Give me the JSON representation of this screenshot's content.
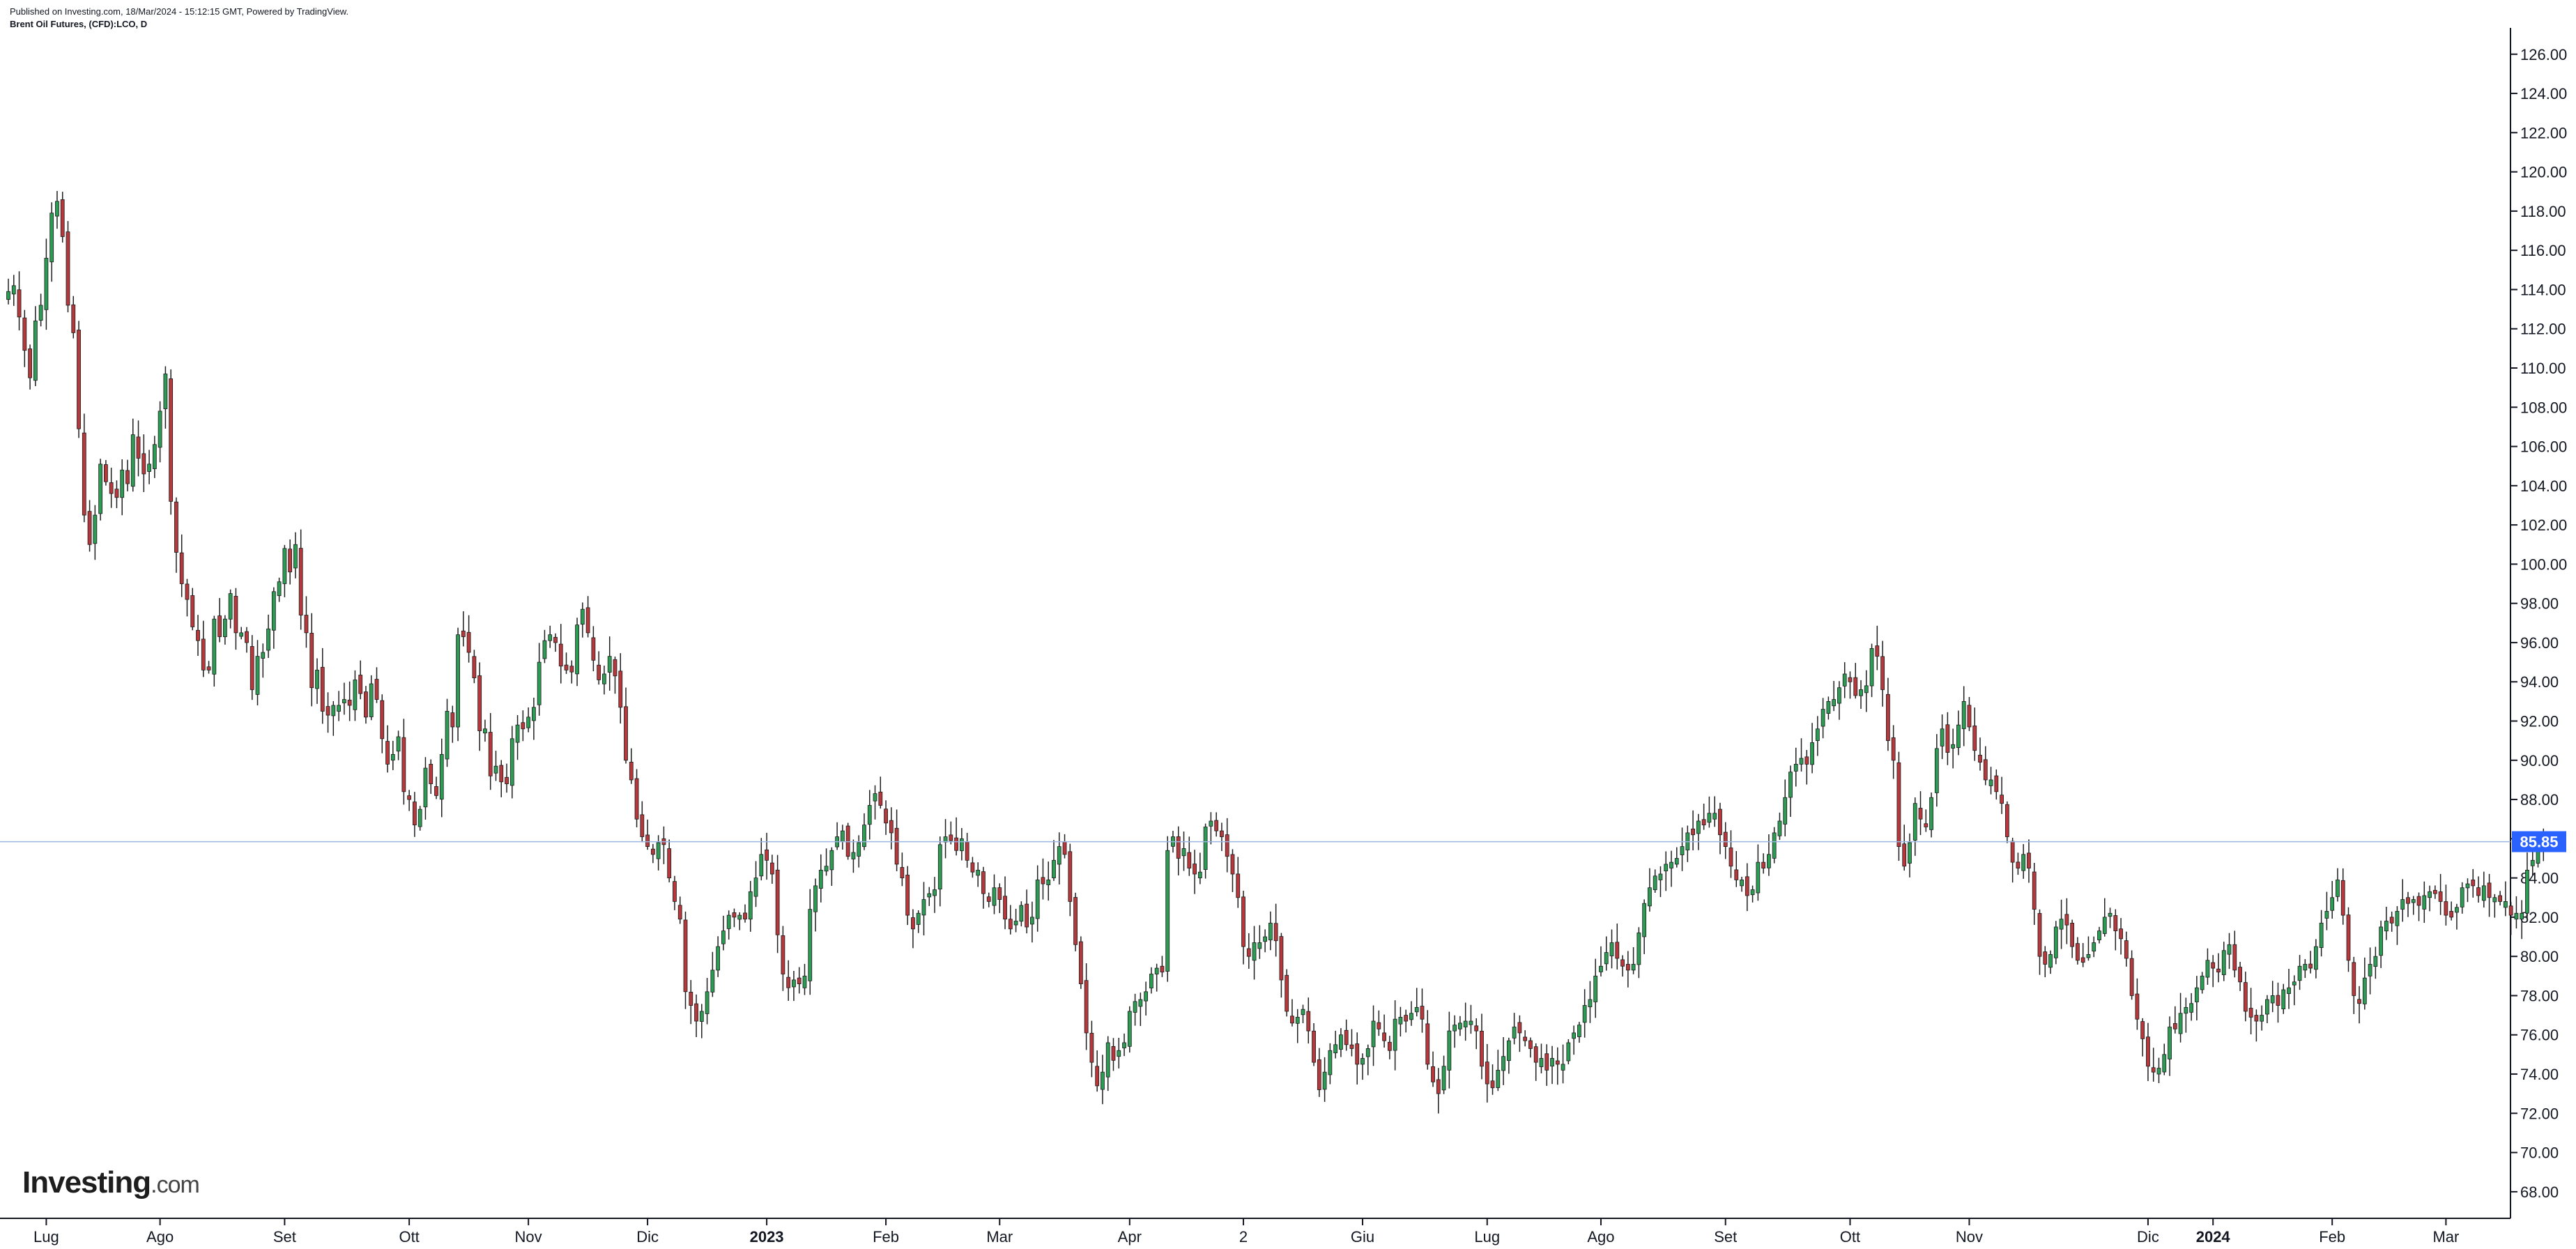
{
  "header": {
    "published": "Published on Investing.com, 18/Mar/2024 - 15:12:15 GMT, Powered by TradingView.",
    "symbol": "Brent Oil Futures, (CFD):LCO, D"
  },
  "logo": {
    "brand": "Investing",
    "suffix": ".com"
  },
  "colors": {
    "up": "#2e9b55",
    "down": "#b5393c",
    "wick": "#1d1d1d",
    "price_line": "#9ab6e0",
    "price_tag": "#2962ff",
    "axis": "#131722"
  },
  "chart_data": {
    "type": "candlestick",
    "title": "Brent Oil Futures, (CFD):LCO, D",
    "y_ticks": [
      "126.00",
      "124.00",
      "122.00",
      "120.00",
      "118.00",
      "116.00",
      "114.00",
      "112.00",
      "110.00",
      "108.00",
      "106.00",
      "104.00",
      "102.00",
      "100.00",
      "98.00",
      "96.00",
      "94.00",
      "92.00",
      "90.00",
      "88.00",
      "86.00",
      "84.00",
      "82.00",
      "80.00",
      "78.00",
      "76.00",
      "74.00",
      "72.00",
      "70.00",
      "68.00"
    ],
    "ylim": [
      67.0,
      127.2
    ],
    "x_ticks": [
      {
        "label": "Lug",
        "idx": 7,
        "bold": false
      },
      {
        "label": "Ago",
        "idx": 28,
        "bold": false
      },
      {
        "label": "Set",
        "idx": 51,
        "bold": false
      },
      {
        "label": "Ott",
        "idx": 74,
        "bold": false
      },
      {
        "label": "Nov",
        "idx": 96,
        "bold": false
      },
      {
        "label": "Dic",
        "idx": 118,
        "bold": false
      },
      {
        "label": "2023",
        "idx": 140,
        "bold": true
      },
      {
        "label": "Feb",
        "idx": 162,
        "bold": false
      },
      {
        "label": "Mar",
        "idx": 183,
        "bold": false
      },
      {
        "label": "Apr",
        "idx": 207,
        "bold": false
      },
      {
        "label": "2",
        "idx": 228,
        "bold": false
      },
      {
        "label": "Giu",
        "idx": 250,
        "bold": false
      },
      {
        "label": "Lug",
        "idx": 273,
        "bold": false
      },
      {
        "label": "Ago",
        "idx": 294,
        "bold": false
      },
      {
        "label": "Set",
        "idx": 317,
        "bold": false
      },
      {
        "label": "Ott",
        "idx": 340,
        "bold": false
      },
      {
        "label": "Nov",
        "idx": 362,
        "bold": false
      },
      {
        "label": "Dic",
        "idx": 395,
        "bold": false
      },
      {
        "label": "2024",
        "idx": 407,
        "bold": true
      },
      {
        "label": "Feb",
        "idx": 429,
        "bold": false
      },
      {
        "label": "Mar",
        "idx": 450,
        "bold": false
      }
    ],
    "last_price": 85.85,
    "last_price_label": "85.85",
    "n_bars": 465,
    "closes": [
      113.9,
      114.2,
      112.6,
      110.9,
      109.5,
      112.4,
      113.2,
      115.6,
      117.9,
      118.5,
      116.7,
      113.2,
      111.8,
      106.9,
      102.5,
      101.0,
      102.5,
      105.1,
      104.2,
      103.6,
      103.4,
      104.8,
      104.1,
      106.6,
      105.4,
      104.6,
      105.1,
      106.1,
      107.8,
      109.7,
      103.2,
      100.6,
      99.0,
      98.2,
      96.8,
      96.1,
      94.6,
      94.6,
      97.2,
      96.3,
      97.2,
      98.5,
      96.5,
      96.5,
      96.0,
      93.6,
      95.3,
      95.5,
      96.7,
      98.6,
      99.1,
      100.8,
      99.6,
      101.0,
      97.4,
      96.5,
      93.7,
      94.6,
      92.5,
      92.3,
      92.8,
      92.8,
      93.1,
      92.8,
      94.1,
      93.4,
      92.2,
      93.9,
      93.1,
      91.1,
      89.8,
      90.3,
      91.2,
      88.4,
      88.0,
      86.7,
      87.5,
      89.6,
      88.8,
      88.2,
      90.3,
      92.5,
      91.7,
      96.4,
      96.3,
      95.5,
      94.2,
      91.5,
      91.6,
      89.2,
      89.7,
      88.9,
      88.8,
      91.1,
      91.8,
      91.6,
      92.2,
      92.7,
      95.0,
      96.1,
      96.4,
      96.0,
      94.8,
      94.6,
      94.5,
      96.9,
      97.7,
      96.5,
      95.1,
      94.1,
      94.4,
      95.3,
      94.3,
      92.7,
      90.0,
      89.0,
      87.0,
      86.1,
      85.6,
      85.2,
      85.8,
      85.7,
      84.0,
      82.8,
      81.9,
      78.2,
      77.5,
      76.7,
      77.2,
      78.2,
      79.3,
      80.5,
      81.3,
      82.1,
      82.0,
      82.1,
      81.9,
      83.3,
      84.0,
      85.2,
      84.9,
      84.2,
      81.1,
      79.1,
      78.4,
      78.8,
      78.6,
      79.0,
      82.4,
      83.6,
      84.4,
      84.6,
      85.4,
      86.1,
      86.4,
      85.1,
      85.3,
      85.8,
      86.7,
      87.7,
      88.3,
      87.7,
      86.8,
      86.3,
      84.7,
      84.0,
      82.1,
      81.4,
      82.2,
      82.9,
      83.2,
      83.4,
      85.7,
      86.1,
      85.9,
      85.4,
      86.0,
      84.9,
      84.3,
      84.4,
      83.2,
      82.8,
      83.5,
      82.9,
      81.9,
      81.4,
      81.8,
      82.6,
      81.5,
      82.0,
      83.9,
      83.7,
      83.9,
      84.9,
      85.6,
      85.2,
      82.8,
      80.6,
      78.6,
      76.1,
      74.6,
      73.4,
      74.1,
      75.6,
      74.7,
      75.2,
      75.6,
      77.2,
      77.7,
      77.8,
      78.2,
      79.1,
      79.4,
      79.2,
      85.4,
      86.1,
      85.0,
      85.5,
      84.5,
      84.2,
      84.3,
      86.6,
      86.9,
      86.4,
      86.1,
      85.1,
      84.2,
      83.0,
      80.5,
      80.0,
      80.7,
      80.7,
      81.0,
      81.7,
      80.8,
      78.8,
      77.2,
      76.6,
      76.9,
      77.3,
      76.2,
      74.6,
      73.2,
      74.1,
      75.2,
      75.5,
      76.0,
      75.5,
      75.3,
      74.5,
      74.8,
      75.3,
      76.7,
      76.3,
      75.7,
      75.2,
      76.8,
      76.9,
      76.7,
      77.1,
      77.4,
      76.8,
      74.5,
      73.6,
      73.0,
      74.4,
      76.2,
      76.5,
      76.6,
      76.7,
      76.7,
      76.2,
      74.4,
      73.5,
      73.3,
      74.2,
      74.9,
      75.7,
      76.4,
      76.1,
      75.7,
      75.3,
      74.6,
      74.8,
      74.2,
      74.8,
      74.5,
      74.5,
      75.6,
      76.1,
      76.5,
      77.5,
      77.8,
      79.0,
      79.5,
      80.2,
      80.7,
      79.9,
      79.5,
      79.3,
      79.6,
      81.2,
      82.7,
      83.5,
      84.1,
      84.2,
      84.7,
      84.8,
      85.0,
      85.6,
      86.3,
      86.2,
      86.9,
      86.7,
      87.3,
      87.3,
      86.2,
      85.6,
      84.6,
      83.9,
      83.9,
      83.1,
      83.4,
      84.8,
      84.5,
      85.2,
      86.3,
      86.9,
      88.1,
      89.4,
      89.8,
      90.1,
      89.8,
      90.9,
      91.6,
      92.6,
      93.0,
      93.1,
      93.7,
      94.4,
      94.0,
      93.3,
      93.6,
      93.8,
      95.7,
      95.3,
      93.6,
      91.0,
      90.0,
      85.6,
      84.6,
      85.8,
      87.8,
      87.0,
      86.6,
      88.1,
      90.6,
      91.6,
      90.4,
      90.8,
      91.8,
      93.0,
      91.7,
      90.5,
      89.9,
      89.0,
      89.0,
      88.4,
      87.8,
      86.1,
      84.8,
      84.5,
      85.2,
      84.5,
      82.4,
      80.0,
      79.6,
      80.1,
      81.5,
      81.9,
      81.6,
      80.5,
      79.8,
      79.7,
      80.1,
      80.7,
      81.3,
      82.0,
      82.2,
      81.3,
      80.9,
      79.9,
      78.0,
      76.8,
      75.8,
      74.4,
      74.1,
      74.3,
      75.0,
      76.4,
      76.3,
      77.1,
      77.4,
      77.6,
      78.4,
      79.0,
      79.8,
      79.4,
      79.2,
      80.3,
      80.6,
      79.3,
      78.7,
      77.2,
      76.9,
      76.7,
      77.0,
      77.8,
      78.0,
      77.5,
      78.3,
      78.4,
      78.7,
      79.5,
      79.6,
      79.4,
      80.5,
      81.7,
      82.3,
      83.0,
      83.9,
      82.1,
      79.8,
      78.0,
      77.6,
      78.9,
      79.6,
      80.0,
      81.5,
      81.8,
      81.7,
      82.3,
      82.9,
      82.7,
      82.9,
      82.6,
      83.1,
      83.3,
      83.2,
      82.8,
      82.1,
      82.0,
      82.5,
      83.5,
      83.7,
      83.6,
      83.1,
      83.6,
      83.0,
      83.0,
      82.8,
      82.8,
      82.1,
      82.2,
      82.2,
      84.4,
      84.9,
      85.7,
      85.85
    ]
  }
}
